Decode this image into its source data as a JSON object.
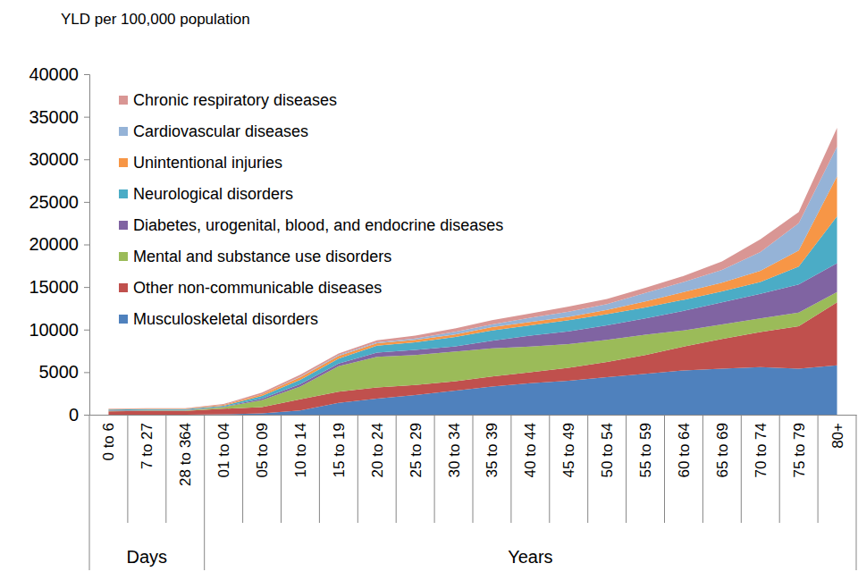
{
  "chart_data": {
    "type": "area",
    "stacked": true,
    "legend": "upper left",
    "y_label": "YLD per 100,000 population",
    "categories": [
      "0 to 6",
      "7 to 27",
      "28 to 364",
      "01 to 04",
      "05 to 09",
      "10 to 14",
      "15 to 19",
      "20 to 24",
      "25 to 29",
      "30 to 34",
      "35 to 39",
      "40 to 44",
      "45 to 49",
      "50 to 54",
      "55 to 59",
      "60 to 64",
      "65 to 69",
      "70 to 74",
      "75 to 79",
      "80+"
    ],
    "category_groups": [
      "Days",
      "Days",
      "Days",
      "Years",
      "Years",
      "Years",
      "Years",
      "Years",
      "Years",
      "Years",
      "Years",
      "Years",
      "Years",
      "Years",
      "Years",
      "Years",
      "Years",
      "Years",
      "Years",
      "Years"
    ],
    "ylim": [
      0,
      40000
    ],
    "yticks": [
      0,
      5000,
      10000,
      15000,
      20000,
      25000,
      30000,
      35000,
      40000
    ],
    "series": [
      {
        "name": "Musculoskeletal disorders",
        "color": "#4f81bd",
        "values": [
          0,
          0,
          0,
          50,
          150,
          500,
          1400,
          1900,
          2300,
          2800,
          3300,
          3700,
          4000,
          4400,
          4800,
          5200,
          5400,
          5600,
          5400,
          5800
        ]
      },
      {
        "name": "Other non-communicable diseases",
        "color": "#c0504d",
        "values": [
          400,
          450,
          450,
          650,
          750,
          1300,
          1300,
          1300,
          1200,
          1100,
          1200,
          1300,
          1500,
          1800,
          2200,
          2800,
          3500,
          4100,
          5000,
          7400
        ]
      },
      {
        "name": "Mental and substance use disorders",
        "color": "#9bbb59",
        "values": [
          50,
          50,
          50,
          200,
          800,
          1500,
          3000,
          3600,
          3500,
          3500,
          3300,
          3000,
          2800,
          2600,
          2400,
          1900,
          1700,
          1600,
          1600,
          1200
        ]
      },
      {
        "name": "Diabetes, urogenital, blood, and endocrine diseases",
        "color": "#8064a2",
        "values": [
          50,
          50,
          50,
          50,
          200,
          300,
          300,
          500,
          600,
          600,
          900,
          1300,
          1500,
          1700,
          1900,
          2300,
          2600,
          2900,
          3300,
          3400
        ]
      },
      {
        "name": "Neurological disorders",
        "color": "#4bacc6",
        "values": [
          100,
          100,
          100,
          100,
          300,
          500,
          600,
          800,
          900,
          1100,
          1200,
          1200,
          1300,
          1300,
          1300,
          1300,
          1300,
          1400,
          2100,
          5500
        ]
      },
      {
        "name": "Unintentional injuries",
        "color": "#f79646",
        "values": [
          50,
          50,
          50,
          100,
          200,
          300,
          300,
          300,
          300,
          300,
          400,
          400,
          400,
          500,
          700,
          900,
          1000,
          1300,
          1900,
          4700
        ]
      },
      {
        "name": "Cardiovascular diseases",
        "color": "#95b3d7",
        "values": [
          0,
          0,
          0,
          0,
          0,
          50,
          100,
          100,
          150,
          300,
          300,
          500,
          600,
          700,
          1000,
          1200,
          1500,
          2200,
          3200,
          3500
        ]
      },
      {
        "name": "Chronic respiratory diseases",
        "color": "#d99694",
        "values": [
          50,
          50,
          50,
          100,
          200,
          250,
          200,
          250,
          350,
          400,
          500,
          500,
          600,
          600,
          600,
          700,
          1000,
          1500,
          1300,
          2200
        ]
      }
    ]
  }
}
